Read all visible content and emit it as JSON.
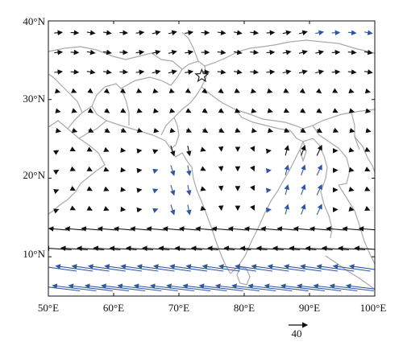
{
  "map": {
    "lat_labels": [
      "40°N",
      "30°N",
      "20°N",
      "10°N"
    ],
    "lon_labels": [
      "50°E",
      "60°E",
      "70°E",
      "80°E",
      "90°E",
      "100°E"
    ],
    "reference_vector_label": "40",
    "colors": {
      "background": "#ffffff",
      "coastline": "#a9a9a9",
      "vector_black": "#111111",
      "vector_blue": "#2f56a3",
      "marker": "#111111"
    },
    "marker_icon": "star-icon"
  }
}
